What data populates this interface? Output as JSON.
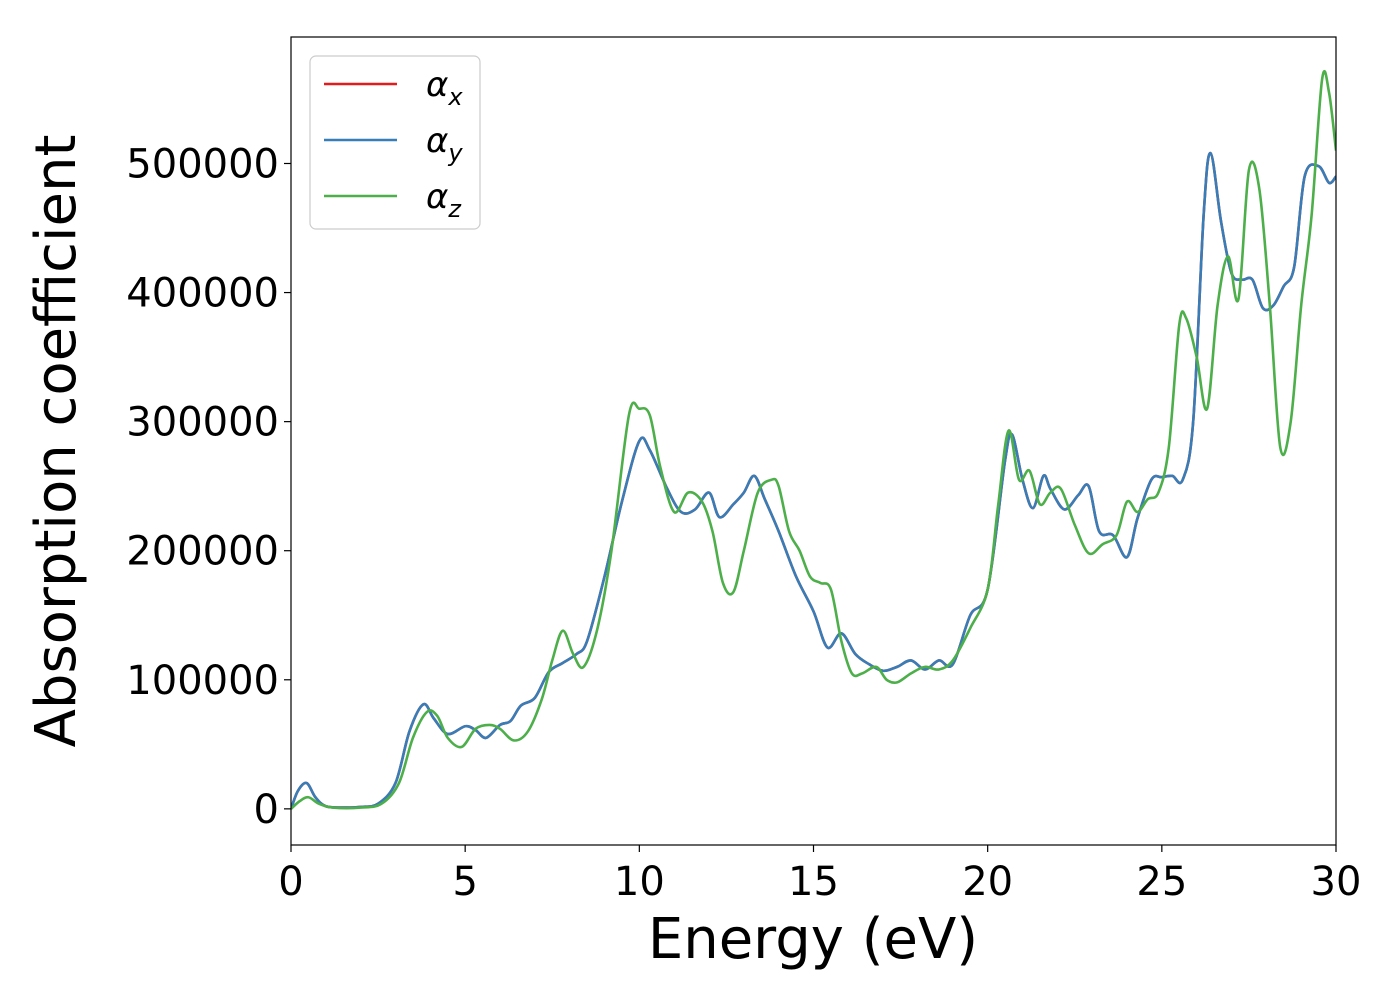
{
  "chart_data": {
    "type": "line",
    "title": "",
    "xlabel": "Energy (eV)",
    "ylabel": "Absorption coefficient",
    "xlim": [
      0,
      30
    ],
    "ylim": [
      -28000,
      598000
    ],
    "xticks": [
      0,
      5,
      10,
      15,
      20,
      25,
      30
    ],
    "yticks": [
      0,
      100000,
      200000,
      300000,
      400000,
      500000
    ],
    "grid": false,
    "legend_position": "top-left",
    "series": [
      {
        "name": "α_x",
        "base": "α",
        "sub": "x",
        "color": "#e41a1c",
        "x": [
          0,
          0.2,
          0.45,
          0.7,
          1.0,
          1.5,
          2.0,
          2.5,
          3.0,
          3.4,
          3.8,
          4.1,
          4.5,
          5.0,
          5.3,
          5.6,
          6.0,
          6.3,
          6.6,
          7.0,
          7.4,
          7.8,
          8.2,
          8.5,
          9.0,
          9.5,
          10.0,
          10.3,
          10.8,
          11.2,
          11.6,
          12.0,
          12.3,
          12.7,
          13.0,
          13.3,
          13.6,
          14.0,
          14.5,
          15.0,
          15.4,
          15.8,
          16.2,
          16.6,
          17.0,
          17.4,
          17.8,
          18.2,
          18.6,
          19.0,
          19.5,
          20.0,
          20.5,
          20.7,
          21.0,
          21.3,
          21.6,
          21.8,
          22.2,
          22.6,
          22.9,
          23.2,
          23.6,
          24.0,
          24.3,
          24.7,
          25.0,
          25.3,
          25.6,
          25.9,
          26.2,
          26.4,
          26.7,
          27.0,
          27.3,
          27.6,
          27.9,
          28.2,
          28.5,
          28.8,
          29.1,
          29.5,
          29.8,
          30.0
        ],
        "y": [
          0,
          14000,
          20000,
          9000,
          2000,
          1000,
          1500,
          4000,
          20000,
          60000,
          81000,
          70000,
          58000,
          64000,
          61000,
          55000,
          65000,
          68000,
          80000,
          86000,
          106000,
          113000,
          120000,
          130000,
          180000,
          238000,
          285000,
          278000,
          248000,
          230000,
          232000,
          245000,
          226000,
          236000,
          245000,
          258000,
          240000,
          215000,
          180000,
          153000,
          125000,
          136000,
          120000,
          112000,
          107000,
          110000,
          115000,
          108000,
          115000,
          112000,
          150000,
          170000,
          270000,
          290000,
          255000,
          233000,
          258000,
          248000,
          232000,
          243000,
          250000,
          215000,
          212000,
          195000,
          225000,
          255000,
          257000,
          258000,
          255000,
          300000,
          460000,
          508000,
          455000,
          415000,
          410000,
          410000,
          388000,
          390000,
          405000,
          420000,
          490000,
          498000,
          485000,
          490000
        ]
      },
      {
        "name": "α_y",
        "base": "α",
        "sub": "y",
        "color": "#377eb8",
        "x": [
          0,
          0.2,
          0.45,
          0.7,
          1.0,
          1.5,
          2.0,
          2.5,
          3.0,
          3.4,
          3.8,
          4.1,
          4.5,
          5.0,
          5.3,
          5.6,
          6.0,
          6.3,
          6.6,
          7.0,
          7.4,
          7.8,
          8.2,
          8.5,
          9.0,
          9.5,
          10.0,
          10.3,
          10.8,
          11.2,
          11.6,
          12.0,
          12.3,
          12.7,
          13.0,
          13.3,
          13.6,
          14.0,
          14.5,
          15.0,
          15.4,
          15.8,
          16.2,
          16.6,
          17.0,
          17.4,
          17.8,
          18.2,
          18.6,
          19.0,
          19.5,
          20.0,
          20.5,
          20.7,
          21.0,
          21.3,
          21.6,
          21.8,
          22.2,
          22.6,
          22.9,
          23.2,
          23.6,
          24.0,
          24.3,
          24.7,
          25.0,
          25.3,
          25.6,
          25.9,
          26.2,
          26.4,
          26.7,
          27.0,
          27.3,
          27.6,
          27.9,
          28.2,
          28.5,
          28.8,
          29.1,
          29.5,
          29.8,
          30.0
        ],
        "y": [
          0,
          14000,
          20000,
          9000,
          2000,
          1000,
          1500,
          4000,
          20000,
          60000,
          81000,
          70000,
          58000,
          64000,
          61000,
          55000,
          65000,
          68000,
          80000,
          86000,
          106000,
          113000,
          120000,
          130000,
          180000,
          238000,
          285000,
          278000,
          248000,
          230000,
          232000,
          245000,
          226000,
          236000,
          245000,
          258000,
          240000,
          215000,
          180000,
          153000,
          125000,
          136000,
          120000,
          112000,
          107000,
          110000,
          115000,
          108000,
          115000,
          112000,
          150000,
          170000,
          270000,
          290000,
          255000,
          233000,
          258000,
          248000,
          232000,
          243000,
          250000,
          215000,
          212000,
          195000,
          225000,
          255000,
          257000,
          258000,
          255000,
          300000,
          460000,
          508000,
          455000,
          415000,
          410000,
          410000,
          388000,
          390000,
          405000,
          420000,
          490000,
          498000,
          485000,
          490000
        ]
      },
      {
        "name": "α_z",
        "base": "α",
        "sub": "z",
        "color": "#4daf4a",
        "x": [
          0,
          0.25,
          0.5,
          0.8,
          1.2,
          2.0,
          2.6,
          3.1,
          3.5,
          3.9,
          4.2,
          4.5,
          4.9,
          5.3,
          5.7,
          6.0,
          6.4,
          6.8,
          7.2,
          7.5,
          7.8,
          8.1,
          8.4,
          8.8,
          9.2,
          9.7,
          10.0,
          10.3,
          10.6,
          11.0,
          11.4,
          11.8,
          12.1,
          12.4,
          12.7,
          13.0,
          13.4,
          13.8,
          14.0,
          14.3,
          14.6,
          14.9,
          15.2,
          15.5,
          15.8,
          16.1,
          16.4,
          16.8,
          17.1,
          17.4,
          17.8,
          18.2,
          18.6,
          19.0,
          19.5,
          20.0,
          20.3,
          20.6,
          20.9,
          21.2,
          21.5,
          21.8,
          22.1,
          22.5,
          22.9,
          23.3,
          23.7,
          24.0,
          24.3,
          24.6,
          24.9,
          25.2,
          25.5,
          25.7,
          26.0,
          26.3,
          26.6,
          26.9,
          27.2,
          27.5,
          27.8,
          28.1,
          28.4,
          28.7,
          29.0,
          29.3,
          29.6,
          29.8,
          30.0
        ],
        "y": [
          0,
          6000,
          9000,
          4000,
          1000,
          1000,
          4000,
          20000,
          55000,
          75000,
          72000,
          55000,
          48000,
          62000,
          65000,
          62000,
          53000,
          60000,
          85000,
          115000,
          138000,
          120000,
          110000,
          140000,
          200000,
          305000,
          310000,
          305000,
          265000,
          230000,
          245000,
          238000,
          215000,
          175000,
          168000,
          200000,
          245000,
          255000,
          250000,
          215000,
          200000,
          180000,
          175000,
          170000,
          130000,
          105000,
          105000,
          110000,
          100000,
          98000,
          105000,
          110000,
          108000,
          115000,
          140000,
          170000,
          235000,
          293000,
          255000,
          262000,
          236000,
          245000,
          248000,
          220000,
          198000,
          205000,
          212000,
          238000,
          230000,
          240000,
          245000,
          280000,
          375000,
          380000,
          350000,
          310000,
          390000,
          428000,
          395000,
          495000,
          480000,
          390000,
          280000,
          300000,
          390000,
          460000,
          565000,
          555000,
          510000
        ]
      }
    ]
  }
}
